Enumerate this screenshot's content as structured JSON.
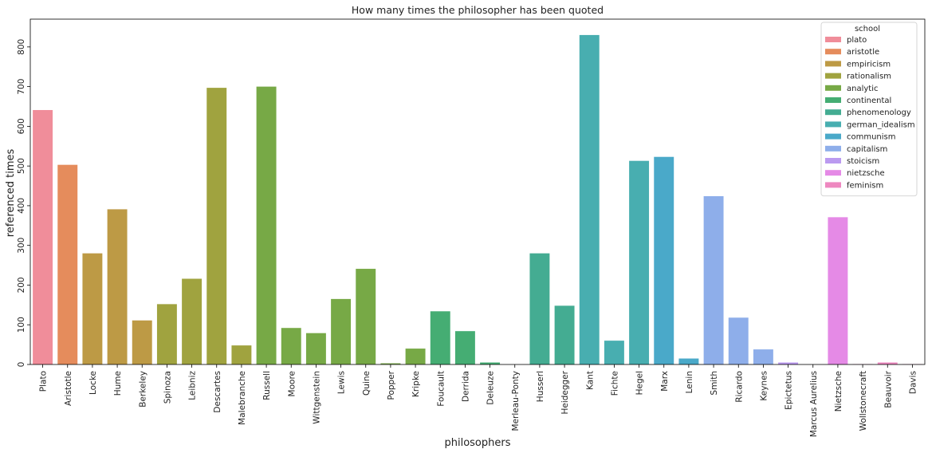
{
  "chart_data": {
    "type": "bar",
    "title": "How many times the philosopher has been quoted",
    "xlabel": "philosophers",
    "ylabel": "referenced times",
    "ylim": [
      0,
      870
    ],
    "yticks": [
      0,
      100,
      200,
      300,
      400,
      500,
      600,
      700,
      800
    ],
    "grid": false,
    "legend": {
      "title": "school",
      "placement": "top-right",
      "entries": [
        {
          "name": "plato",
          "color": "#f08d9a"
        },
        {
          "name": "aristotle",
          "color": "#e58c5c"
        },
        {
          "name": "empiricism",
          "color": "#bd9a45"
        },
        {
          "name": "rationalism",
          "color": "#a0a33f"
        },
        {
          "name": "analytic",
          "color": "#77a946"
        },
        {
          "name": "continental",
          "color": "#45ad73"
        },
        {
          "name": "phenomenology",
          "color": "#44ac92"
        },
        {
          "name": "german_idealism",
          "color": "#48aeb0"
        },
        {
          "name": "communism",
          "color": "#4aa9c9"
        },
        {
          "name": "capitalism",
          "color": "#8eaeea"
        },
        {
          "name": "stoicism",
          "color": "#bb9af0"
        },
        {
          "name": "nietzsche",
          "color": "#e58ae6"
        },
        {
          "name": "feminism",
          "color": "#ee88c0"
        }
      ]
    },
    "bars": [
      {
        "category": "Plato",
        "value": 641,
        "school": "plato"
      },
      {
        "category": "Aristotle",
        "value": 503,
        "school": "aristotle"
      },
      {
        "category": "Locke",
        "value": 280,
        "school": "empiricism"
      },
      {
        "category": "Hume",
        "value": 391,
        "school": "empiricism"
      },
      {
        "category": "Berkeley",
        "value": 111,
        "school": "empiricism"
      },
      {
        "category": "Spinoza",
        "value": 152,
        "school": "rationalism"
      },
      {
        "category": "Leibniz",
        "value": 216,
        "school": "rationalism"
      },
      {
        "category": "Descartes",
        "value": 697,
        "school": "rationalism"
      },
      {
        "category": "Malebranche",
        "value": 48,
        "school": "rationalism"
      },
      {
        "category": "Russell",
        "value": 700,
        "school": "analytic"
      },
      {
        "category": "Moore",
        "value": 92,
        "school": "analytic"
      },
      {
        "category": "Wittgenstein",
        "value": 79,
        "school": "analytic"
      },
      {
        "category": "Lewis",
        "value": 165,
        "school": "analytic"
      },
      {
        "category": "Quine",
        "value": 241,
        "school": "analytic"
      },
      {
        "category": "Popper",
        "value": 3,
        "school": "analytic"
      },
      {
        "category": "Kripke",
        "value": 40,
        "school": "analytic"
      },
      {
        "category": "Foucault",
        "value": 134,
        "school": "continental"
      },
      {
        "category": "Derrida",
        "value": 84,
        "school": "continental"
      },
      {
        "category": "Deleuze",
        "value": 5,
        "school": "continental"
      },
      {
        "category": "Merleau-Ponty",
        "value": 0,
        "school": "phenomenology"
      },
      {
        "category": "Husserl",
        "value": 280,
        "school": "phenomenology"
      },
      {
        "category": "Heidegger",
        "value": 148,
        "school": "phenomenology"
      },
      {
        "category": "Kant",
        "value": 830,
        "school": "german_idealism"
      },
      {
        "category": "Fichte",
        "value": 60,
        "school": "german_idealism"
      },
      {
        "category": "Hegel",
        "value": 513,
        "school": "german_idealism"
      },
      {
        "category": "Marx",
        "value": 523,
        "school": "communism"
      },
      {
        "category": "Lenin",
        "value": 15,
        "school": "communism"
      },
      {
        "category": "Smith",
        "value": 424,
        "school": "capitalism"
      },
      {
        "category": "Ricardo",
        "value": 118,
        "school": "capitalism"
      },
      {
        "category": "Keynes",
        "value": 38,
        "school": "capitalism"
      },
      {
        "category": "Epictetus",
        "value": 5,
        "school": "stoicism"
      },
      {
        "category": "Marcus Aurelius",
        "value": 0,
        "school": "stoicism"
      },
      {
        "category": "Nietzsche",
        "value": 371,
        "school": "nietzsche"
      },
      {
        "category": "Wollstonecraft",
        "value": 1,
        "school": "feminism"
      },
      {
        "category": "Beauvoir",
        "value": 5,
        "school": "feminism"
      },
      {
        "category": "Davis",
        "value": 1,
        "school": "feminism"
      }
    ]
  }
}
